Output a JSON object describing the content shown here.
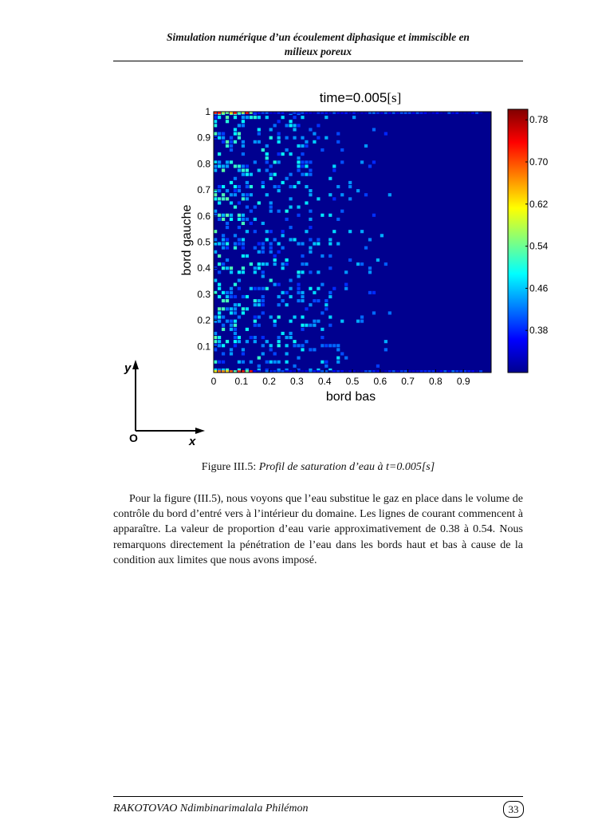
{
  "header": {
    "line1": "Simulation numérique d’un écoulement diphasique et immiscible en",
    "line2": "milieux poreux"
  },
  "figure": {
    "axes_diagram": {
      "y_label": "y",
      "x_label": "x",
      "origin_label": "O"
    }
  },
  "chart_data": {
    "type": "heatmap",
    "title_main": "time=0.005",
    "title_unit": "[s]",
    "xlabel": "bord bas",
    "ylabel": "bord gauche",
    "xlim": [
      0,
      1
    ],
    "ylim": [
      0,
      1
    ],
    "x_ticks": [
      "0",
      "0.1",
      "0.2",
      "0.3",
      "0.4",
      "0.5",
      "0.6",
      "0.7",
      "0.8",
      "0.9"
    ],
    "y_ticks": [
      "0.1",
      "0.2",
      "0.3",
      "0.4",
      "0.5",
      "0.6",
      "0.7",
      "0.8",
      "0.9",
      "1"
    ],
    "colorbar": {
      "range": [
        0.3,
        0.8
      ],
      "ticks": [
        "0.38",
        "0.46",
        "0.54",
        "0.62",
        "0.70",
        "0.78"
      ],
      "colormap": "jet"
    },
    "background_value": 0.3,
    "front_x": 0.65,
    "value_range_front": [
      0.38,
      0.54
    ],
    "grid": false
  },
  "caption": {
    "label": "Figure III.5:",
    "title": "Profil de saturation d’eau à t=0.005[s]"
  },
  "paragraph": "Pour la figure (III.5), nous voyons que l’eau substitue le gaz en place dans le volume de contrôle du bord d’entré vers à l’intérieur du domaine. Les lignes de courant commencent à apparaître. La valeur de proportion d’eau varie approximativement de 0.38 à 0.54. Nous remarquons directement la pénétration de l’eau dans les bords haut et bas à cause de la condition aux limites que nous avons imposé.",
  "footer": {
    "author": "RAKOTOVAO Ndimbinarimalala Philémon",
    "page": "33"
  }
}
